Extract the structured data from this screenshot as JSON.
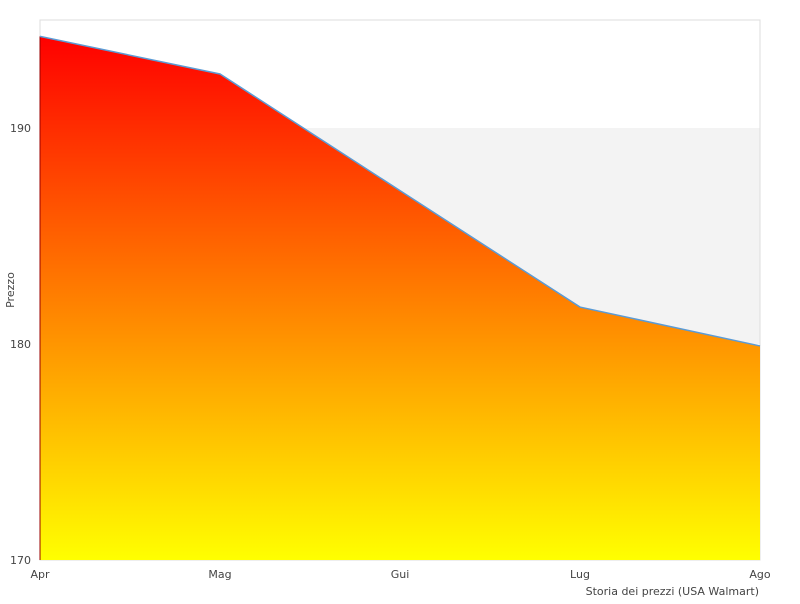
{
  "chart_data": {
    "type": "area",
    "title": "",
    "xlabel": "Storia dei prezzi (USA Walmart)",
    "ylabel": "Prezzo",
    "categories": [
      "Apr",
      "Mag",
      "Gui",
      "Lug",
      "Ago"
    ],
    "series": [
      {
        "name": "Prezzo",
        "values": [
          194.24,
          192.5,
          187.1,
          181.71,
          179.91
        ]
      }
    ],
    "ylim": [
      170,
      195
    ],
    "yticks": [
      170,
      180,
      190
    ],
    "ytick_labels": [
      "170",
      "180",
      "190"
    ],
    "grid": "alternating bands",
    "legend": "none",
    "colors": {
      "gradient_top": "#ff0000",
      "gradient_mid": "#ff8c00",
      "gradient_bottom": "#ffff00",
      "line": "#5b9bd5",
      "band": "#f3f3f3",
      "border": "#dddddd"
    }
  }
}
